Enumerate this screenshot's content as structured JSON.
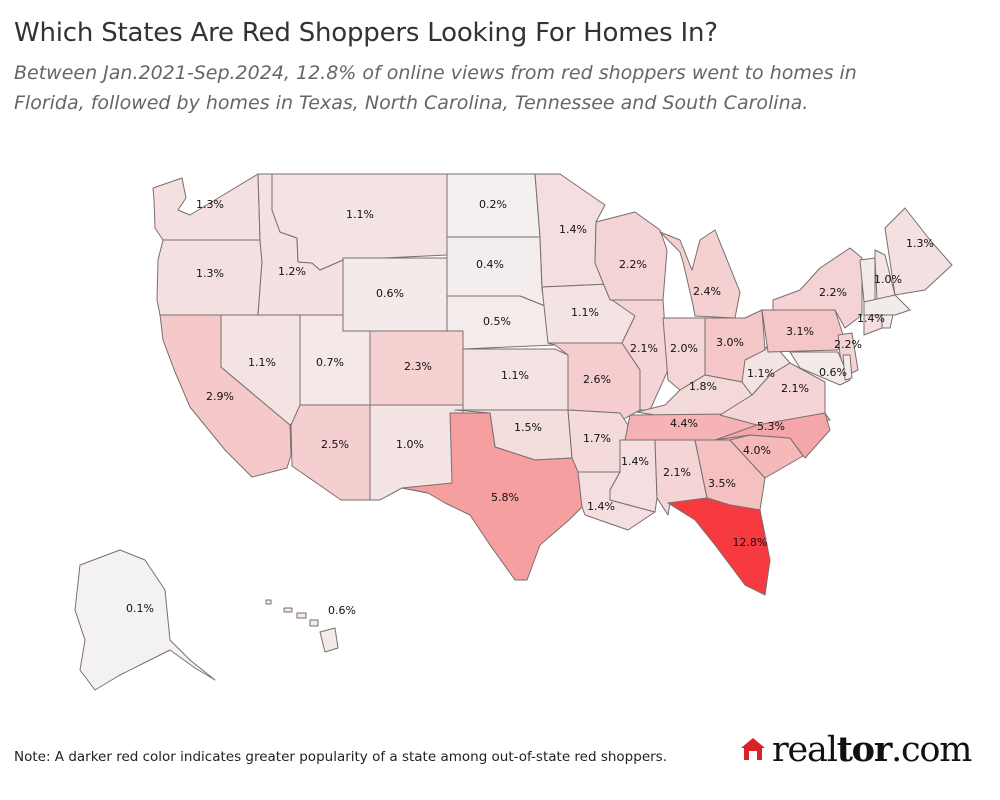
{
  "header": {
    "title": "Which States Are Red Shoppers Looking For Homes In?",
    "subtitle_line1": "Between Jan.2021-Sep.2024, 12.8% of online views from red shoppers went to homes in",
    "subtitle_line2": "Florida, followed by homes in Texas, North Carolina, Tennessee and  South Carolina."
  },
  "footer": {
    "note": "Note: A darker red color indicates greater popularity of a state among out-of-state red shoppers.",
    "logo_text": "realtor.com"
  },
  "colors": {
    "scale_low": "#f4f1f1",
    "scale_high": "#f73a3f",
    "border": "#7a6e6e",
    "logo_red": "#d92228"
  },
  "chart_data": {
    "type": "choropleth",
    "unit": "%",
    "legend": "none",
    "states": [
      {
        "state": "WA",
        "value": 1.3,
        "label": "1.3%"
      },
      {
        "state": "OR",
        "value": 1.3,
        "label": "1.3%"
      },
      {
        "state": "CA",
        "value": 2.9,
        "label": "2.9%"
      },
      {
        "state": "ID",
        "value": 1.2,
        "label": "1.2%"
      },
      {
        "state": "NV",
        "value": 1.1,
        "label": "1.1%"
      },
      {
        "state": "MT",
        "value": 1.1,
        "label": "1.1%"
      },
      {
        "state": "WY",
        "value": 0.6,
        "label": "0.6%"
      },
      {
        "state": "UT",
        "value": 0.7,
        "label": "0.7%"
      },
      {
        "state": "AZ",
        "value": 2.5,
        "label": "2.5%"
      },
      {
        "state": "CO",
        "value": 2.3,
        "label": "2.3%"
      },
      {
        "state": "NM",
        "value": 1.0,
        "label": "1.0%"
      },
      {
        "state": "ND",
        "value": 0.2,
        "label": "0.2%"
      },
      {
        "state": "SD",
        "value": 0.4,
        "label": "0.4%"
      },
      {
        "state": "NE",
        "value": 0.5,
        "label": "0.5%"
      },
      {
        "state": "KS",
        "value": 1.1,
        "label": "1.1%"
      },
      {
        "state": "OK",
        "value": 1.5,
        "label": "1.5%"
      },
      {
        "state": "TX",
        "value": 5.8,
        "label": "5.8%"
      },
      {
        "state": "MN",
        "value": 1.4,
        "label": "1.4%"
      },
      {
        "state": "IA",
        "value": 1.1,
        "label": "1.1%"
      },
      {
        "state": "MO",
        "value": 2.6,
        "label": "2.6%"
      },
      {
        "state": "AR",
        "value": 1.7,
        "label": "1.7%"
      },
      {
        "state": "LA",
        "value": 1.4,
        "label": "1.4%"
      },
      {
        "state": "WI",
        "value": 2.2,
        "label": "2.2%"
      },
      {
        "state": "IL",
        "value": 2.1,
        "label": "2.1%"
      },
      {
        "state": "MI",
        "value": 2.4,
        "label": "2.4%"
      },
      {
        "state": "IN",
        "value": 2.0,
        "label": "2.0%"
      },
      {
        "state": "OH",
        "value": 3.0,
        "label": "3.0%"
      },
      {
        "state": "KY",
        "value": 1.8,
        "label": "1.8%"
      },
      {
        "state": "TN",
        "value": 4.4,
        "label": "4.4%"
      },
      {
        "state": "MS",
        "value": 1.4,
        "label": "1.4%"
      },
      {
        "state": "AL",
        "value": 2.1,
        "label": "2.1%"
      },
      {
        "state": "GA",
        "value": 3.5,
        "label": "3.5%"
      },
      {
        "state": "FL",
        "value": 12.8,
        "label": "12.8%"
      },
      {
        "state": "SC",
        "value": 4.0,
        "label": "4.0%"
      },
      {
        "state": "NC",
        "value": 5.3,
        "label": "5.3%"
      },
      {
        "state": "VA",
        "value": 2.1,
        "label": "2.1%"
      },
      {
        "state": "WV",
        "value": 1.1,
        "label": "1.1%"
      },
      {
        "state": "PA",
        "value": 3.1,
        "label": "3.1%"
      },
      {
        "state": "NY",
        "value": 2.2,
        "label": "2.2%"
      },
      {
        "state": "NJ",
        "value": 2.2,
        "label": "2.2%"
      },
      {
        "state": "MD",
        "value": 0.6,
        "label": "0.6%"
      },
      {
        "state": "CT",
        "value": 1.4,
        "label": "1.4%"
      },
      {
        "state": "NH",
        "value": 1.0,
        "label": "1.0%"
      },
      {
        "state": "ME",
        "value": 1.3,
        "label": "1.3%"
      },
      {
        "state": "AK",
        "value": 0.1,
        "label": "0.1%"
      },
      {
        "state": "HI",
        "value": 0.6,
        "label": "0.6%"
      }
    ]
  }
}
